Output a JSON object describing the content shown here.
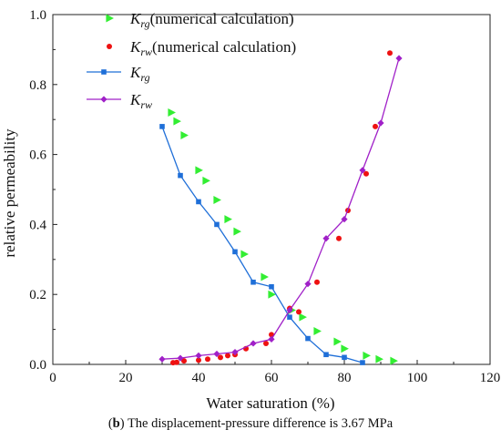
{
  "caption": {
    "label": "b",
    "text": "The displacement-pressure difference is 3.67 MPa"
  },
  "chart_data": {
    "type": "scatter",
    "xlabel": "Water saturation (%)",
    "ylabel": "relative permeability",
    "xlim": [
      0,
      120
    ],
    "ylim": [
      0,
      1.0
    ],
    "xticks": [
      0,
      20,
      40,
      60,
      80,
      100,
      120
    ],
    "yticks": [
      0.0,
      0.2,
      0.4,
      0.6,
      0.8,
      1.0
    ],
    "legend_position": "top-left",
    "grid": false,
    "series": [
      {
        "name": "K_rg(numerical calculation)",
        "name_main": "K",
        "name_sub": "rg",
        "name_rest": "(numerical calculation)",
        "style": "triangle",
        "color": "#33ee33",
        "x": [
          32.5,
          34.0,
          36.0,
          40.0,
          42.0,
          45.0,
          48.0,
          50.5,
          52.5,
          58.0,
          60.0,
          65.5,
          68.5,
          72.5,
          78.0,
          80.0,
          86.0,
          89.5,
          93.5
        ],
        "y": [
          0.72,
          0.695,
          0.655,
          0.555,
          0.525,
          0.47,
          0.415,
          0.38,
          0.315,
          0.25,
          0.2,
          0.155,
          0.135,
          0.095,
          0.065,
          0.045,
          0.025,
          0.015,
          0.01
        ]
      },
      {
        "name": "K_rw(numerical calculation)",
        "name_main": "K",
        "name_sub": "rw",
        "name_rest": "(numerical calculation)",
        "style": "dot",
        "color": "#ee1111",
        "x": [
          33.0,
          34.0,
          36.0,
          40.0,
          42.5,
          46.0,
          48.0,
          50.0,
          53.0,
          58.5,
          60.0,
          65.0,
          67.5,
          72.5,
          78.5,
          81.0,
          86.0,
          88.5,
          92.5
        ],
        "y": [
          0.005,
          0.006,
          0.01,
          0.012,
          0.015,
          0.02,
          0.025,
          0.028,
          0.045,
          0.06,
          0.085,
          0.16,
          0.15,
          0.235,
          0.36,
          0.44,
          0.545,
          0.68,
          0.89
        ]
      },
      {
        "name": "K_rg",
        "name_main": "K",
        "name_sub": "rg",
        "name_rest": "",
        "style": "line-square",
        "color": "#1f6fd8",
        "x": [
          30,
          35,
          40,
          45,
          50,
          55,
          60,
          65,
          70,
          75,
          80,
          85
        ],
        "y": [
          0.68,
          0.54,
          0.465,
          0.4,
          0.322,
          0.235,
          0.222,
          0.135,
          0.074,
          0.028,
          0.02,
          0.005
        ]
      },
      {
        "name": "K_rw",
        "name_main": "K",
        "name_sub": "rw",
        "name_rest": "",
        "style": "line-diamond",
        "color": "#a020c8",
        "x": [
          30,
          35,
          40,
          45,
          50,
          55,
          60,
          65,
          70,
          75,
          80,
          85,
          90,
          95
        ],
        "y": [
          0.015,
          0.018,
          0.025,
          0.03,
          0.035,
          0.06,
          0.072,
          0.155,
          0.23,
          0.36,
          0.415,
          0.555,
          0.69,
          0.875
        ]
      }
    ]
  }
}
